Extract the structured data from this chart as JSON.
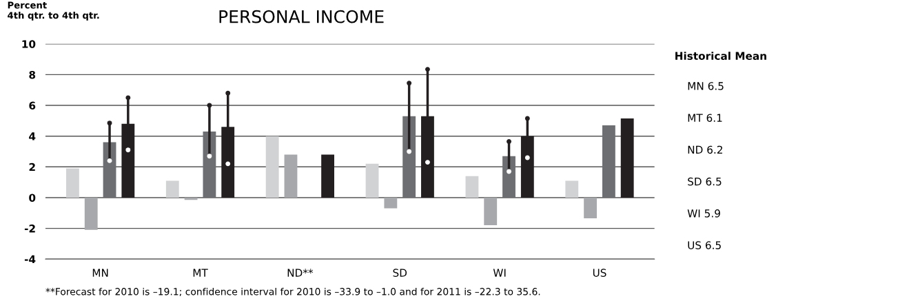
{
  "chart_data": [
    {
      "type": "bar",
      "title": "PERSONAL INCOME",
      "ylabel": "Percent\n4th qtr. to 4th qtr.",
      "categories": [
        "MN",
        "MT",
        "ND**",
        "SD",
        "WI",
        "US"
      ],
      "series": [
        {
          "color": "#d1d2d4",
          "values": [
            1.9,
            1.1,
            4.0,
            2.2,
            1.4,
            1.1
          ]
        },
        {
          "color": "#a7a8ab",
          "values": [
            -2.1,
            -0.15,
            2.8,
            -0.7,
            -1.8,
            -1.35
          ]
        },
        {
          "color": "#6d6e71",
          "values": [
            3.6,
            4.3,
            null,
            5.3,
            2.7,
            4.7
          ],
          "errors": [
            [
              2.4,
              4.85
            ],
            [
              2.7,
              6.0
            ],
            null,
            [
              3.0,
              7.45
            ],
            [
              1.7,
              3.65
            ],
            null
          ]
        },
        {
          "color": "#231f20",
          "values": [
            4.8,
            4.6,
            2.8,
            5.3,
            4.0,
            5.15
          ],
          "errors": [
            [
              3.1,
              6.5
            ],
            [
              2.2,
              6.8
            ],
            null,
            [
              2.3,
              8.35
            ],
            [
              2.6,
              5.15
            ],
            null
          ]
        }
      ],
      "ylim": [
        -4,
        10
      ],
      "yticks": [
        -4,
        -2,
        0,
        2,
        4,
        6,
        8,
        10
      ],
      "grid": "y",
      "marker": "circle",
      "annotations": [
        "**Forecast for 2010 is –19.1; confidence interval for 2010 is –33.9 to –1.0 and for 2011 is –22.3 to 35.6."
      ]
    },
    {
      "type": "other",
      "title": "Historical Mean",
      "annotations": [
        "MN 6.5",
        "MT 6.1",
        "ND 6.2",
        "SD 6.5",
        "WI 5.9",
        "US 6.5"
      ]
    }
  ]
}
